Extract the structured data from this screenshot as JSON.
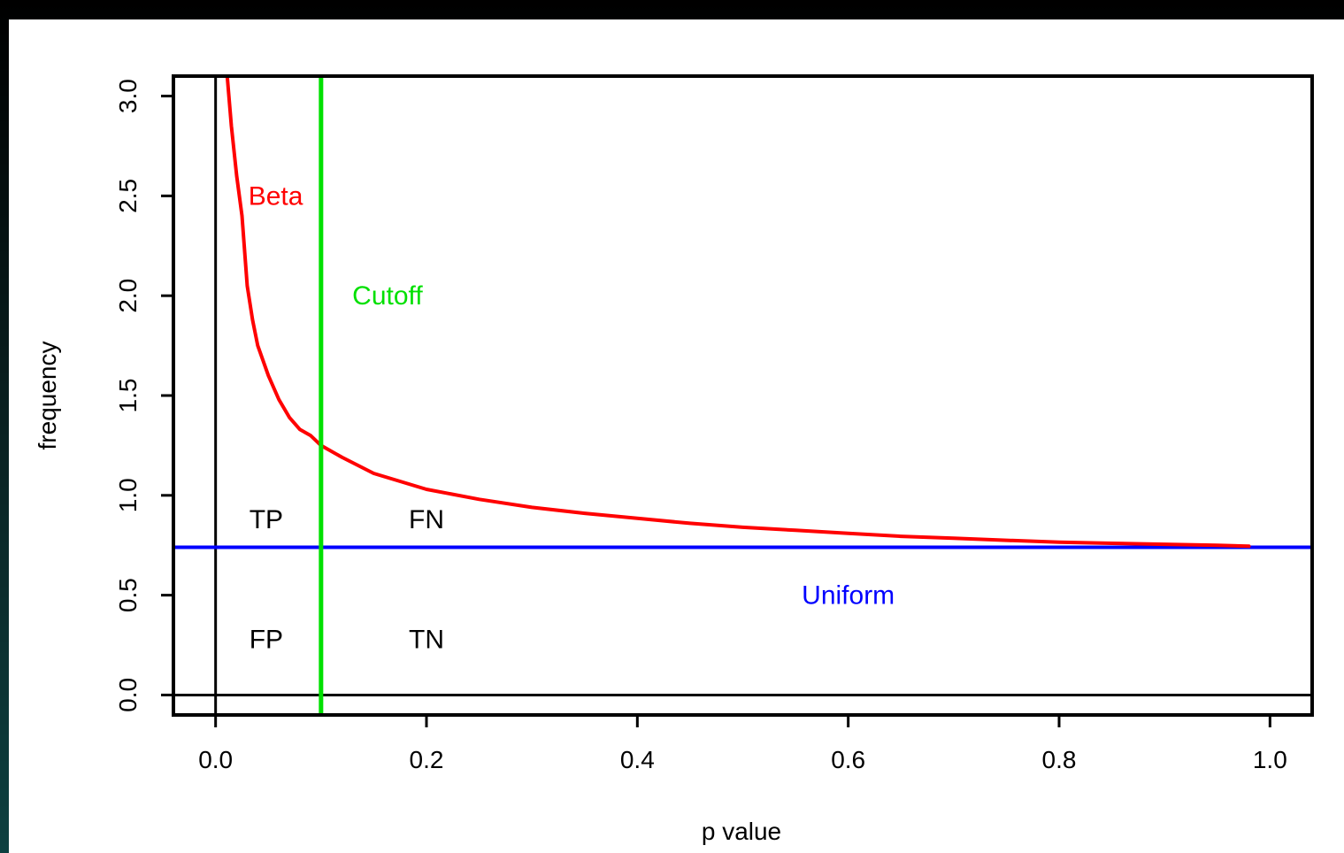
{
  "chart_data": {
    "type": "line",
    "title": "",
    "xlabel": "p value",
    "ylabel": "frequency",
    "xlim": [
      -0.04,
      1.04
    ],
    "ylim": [
      -0.1,
      3.1
    ],
    "xticks": [
      "0.0",
      "0.2",
      "0.4",
      "0.6",
      "0.8",
      "1.0"
    ],
    "yticks": [
      "0.0",
      "0.5",
      "1.0",
      "1.5",
      "2.0",
      "2.5",
      "3.0"
    ],
    "grid": false,
    "series": [
      {
        "name": "Beta",
        "color": "#ff0000",
        "x": [
          0.011,
          0.015,
          0.02,
          0.025,
          0.03,
          0.035,
          0.04,
          0.05,
          0.06,
          0.07,
          0.08,
          0.09,
          0.1,
          0.12,
          0.15,
          0.2,
          0.25,
          0.3,
          0.35,
          0.4,
          0.45,
          0.5,
          0.55,
          0.6,
          0.65,
          0.7,
          0.75,
          0.8,
          0.85,
          0.9,
          0.95,
          0.98
        ],
        "y": [
          3.1,
          2.85,
          2.6,
          2.4,
          2.05,
          1.88,
          1.75,
          1.6,
          1.48,
          1.39,
          1.33,
          1.3,
          1.25,
          1.19,
          1.11,
          1.03,
          0.98,
          0.94,
          0.91,
          0.885,
          0.86,
          0.84,
          0.825,
          0.81,
          0.795,
          0.785,
          0.775,
          0.765,
          0.76,
          0.755,
          0.75,
          0.745
        ]
      },
      {
        "name": "Uniform",
        "color": "#0000ff",
        "y": 0.74
      }
    ],
    "cutoff": {
      "name": "Cutoff",
      "x": 0.1,
      "color": "#00e000"
    },
    "reference_lines": {
      "x": 0,
      "y": 0,
      "color": "#000000"
    },
    "annotations": [
      {
        "text": "Beta",
        "x": 0.057,
        "y": 2.5,
        "color": "#ff0000"
      },
      {
        "text": "Cutoff",
        "x": 0.163,
        "y": 2.0,
        "color": "#00e000"
      },
      {
        "text": "Uniform",
        "x": 0.6,
        "y": 0.5,
        "color": "#0000ff"
      },
      {
        "text": "TP",
        "x": 0.048,
        "y": 0.88,
        "color": "#000000"
      },
      {
        "text": "FN",
        "x": 0.2,
        "y": 0.88,
        "color": "#000000"
      },
      {
        "text": "FP",
        "x": 0.048,
        "y": 0.28,
        "color": "#000000"
      },
      {
        "text": "TN",
        "x": 0.2,
        "y": 0.28,
        "color": "#000000"
      }
    ]
  }
}
